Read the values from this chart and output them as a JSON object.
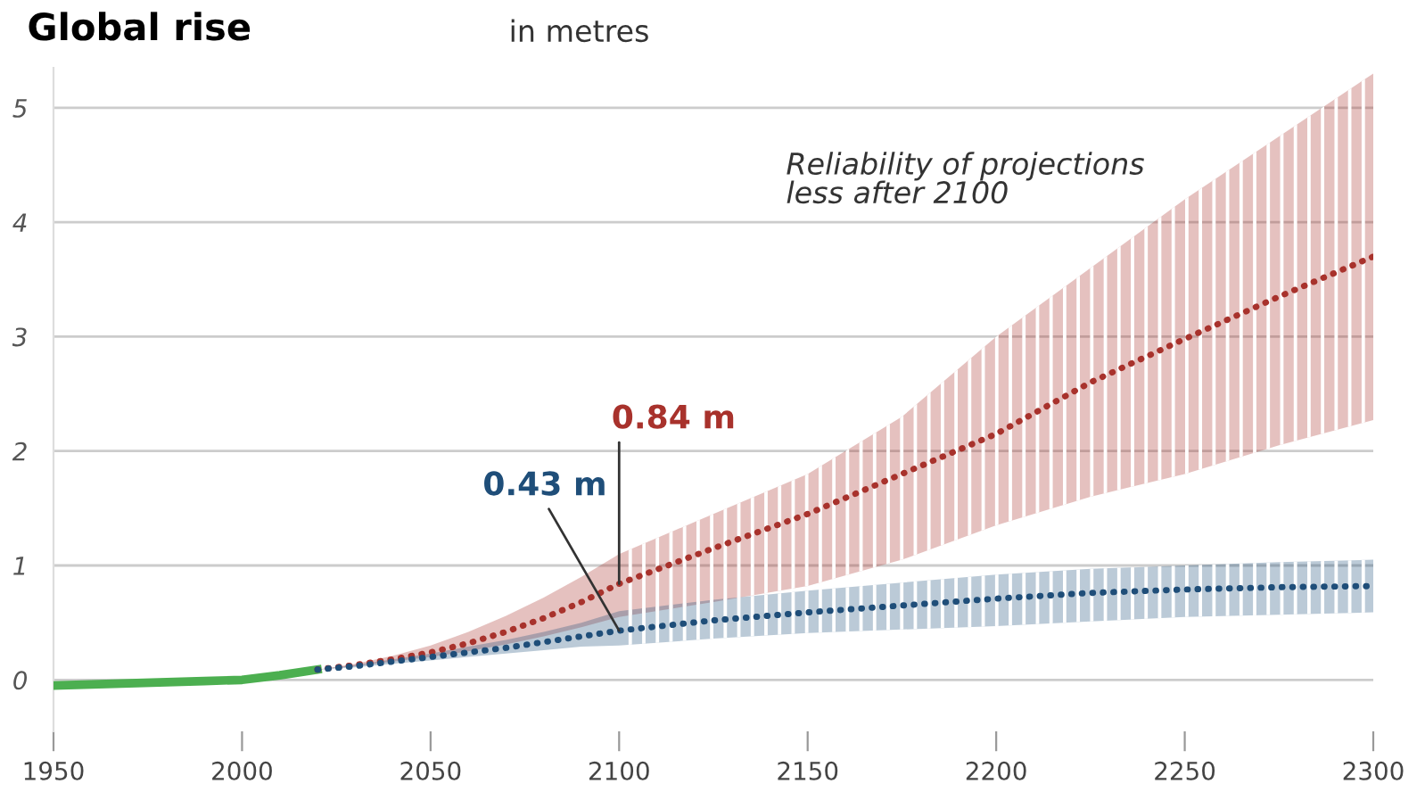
{
  "chart_data": {
    "type": "line",
    "title": "Global rise",
    "subtitle": "in metres",
    "annotations": [
      {
        "text": "0.84 m",
        "x": 2100,
        "y": 0.84
      },
      {
        "text": "0.43 m",
        "x": 2100,
        "y": 0.43
      },
      "Reliability of projections\nless after 2100"
    ],
    "series": [
      {
        "color": "#4caf50",
        "line_style": "solid",
        "x": [
          1950,
          1960,
          1970,
          1980,
          1990,
          2000,
          2010,
          2020
        ],
        "values": [
          -0.05,
          -0.04,
          -0.03,
          -0.02,
          -0.01,
          0.0,
          0.04,
          0.09
        ]
      },
      {
        "color": "#a8322c",
        "line_style": "dotted",
        "x": [
          2020,
          2030,
          2040,
          2050,
          2060,
          2070,
          2080,
          2090,
          2100,
          2125,
          2150,
          2175,
          2200,
          2225,
          2250,
          2275,
          2300
        ],
        "values": [
          0.09,
          0.13,
          0.18,
          0.24,
          0.32,
          0.42,
          0.54,
          0.68,
          0.84,
          1.15,
          1.45,
          1.8,
          2.15,
          2.6,
          2.98,
          3.35,
          3.7
        ],
        "lower": [
          0.09,
          0.12,
          0.16,
          0.2,
          0.25,
          0.31,
          0.38,
          0.46,
          0.55,
          0.68,
          0.82,
          1.05,
          1.35,
          1.6,
          1.8,
          2.05,
          2.27
        ],
        "upper": [
          0.09,
          0.14,
          0.21,
          0.3,
          0.42,
          0.56,
          0.72,
          0.9,
          1.1,
          1.45,
          1.8,
          2.3,
          3.0,
          3.6,
          4.2,
          4.75,
          5.3
        ]
      },
      {
        "color": "#1f4e79",
        "line_style": "dotted",
        "x": [
          2020,
          2030,
          2040,
          2050,
          2060,
          2070,
          2080,
          2090,
          2100,
          2125,
          2150,
          2175,
          2200,
          2225,
          2250,
          2275,
          2300
        ],
        "values": [
          0.09,
          0.12,
          0.16,
          0.2,
          0.24,
          0.28,
          0.33,
          0.38,
          0.43,
          0.52,
          0.59,
          0.65,
          0.71,
          0.76,
          0.79,
          0.81,
          0.82
        ],
        "lower": [
          0.09,
          0.11,
          0.14,
          0.17,
          0.2,
          0.23,
          0.26,
          0.29,
          0.3,
          0.36,
          0.41,
          0.44,
          0.47,
          0.51,
          0.55,
          0.57,
          0.59
        ],
        "upper": [
          0.09,
          0.13,
          0.18,
          0.23,
          0.29,
          0.35,
          0.42,
          0.5,
          0.6,
          0.7,
          0.78,
          0.85,
          0.92,
          0.97,
          1.0,
          1.03,
          1.05
        ]
      }
    ],
    "xlim": [
      1950,
      2300
    ],
    "xticks": [
      1950,
      2000,
      2050,
      2100,
      2150,
      2200,
      2250,
      2300
    ],
    "ylim": [
      -0.45,
      5.35
    ],
    "yticks": [
      0,
      1,
      2,
      3,
      4,
      5
    ],
    "grid": "y",
    "legend": false,
    "marker": "none"
  }
}
